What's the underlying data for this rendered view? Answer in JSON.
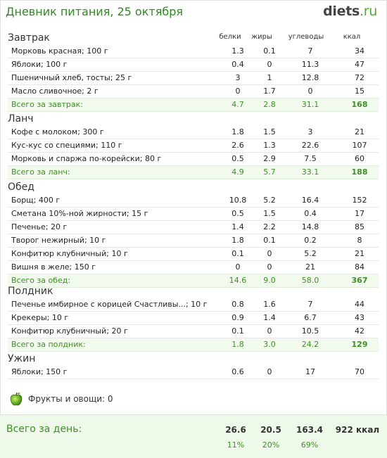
{
  "header": {
    "title": "Дневник питания, 25 октября",
    "logo_main": "diets",
    "logo_ru": ".ru"
  },
  "columns": {
    "protein": "белки",
    "fat": "жиры",
    "carbs": "углеводы",
    "kcal": "ккал"
  },
  "meals": [
    {
      "title": "Завтрак",
      "items": [
        {
          "name": "Морковь красная; 100 г",
          "p": "1.3",
          "f": "0.1",
          "c": "7",
          "k": "34"
        },
        {
          "name": "Яблоки; 100 г",
          "p": "0.4",
          "f": "0",
          "c": "11.3",
          "k": "47"
        },
        {
          "name": "Пшеничный хлеб, тосты; 25 г",
          "p": "3",
          "f": "1",
          "c": "12.8",
          "k": "72"
        },
        {
          "name": "Масло сливочное; 2 г",
          "p": "0",
          "f": "1.7",
          "c": "0",
          "k": "15"
        }
      ],
      "total": {
        "name": "Всего за завтрак:",
        "p": "4.7",
        "f": "2.8",
        "c": "31.1",
        "k": "168"
      }
    },
    {
      "title": "Ланч",
      "items": [
        {
          "name": "Кофе с молоком; 300 г",
          "p": "1.8",
          "f": "1.5",
          "c": "3",
          "k": "21"
        },
        {
          "name": "Кус-кус со специями; 110 г",
          "p": "2.6",
          "f": "1.3",
          "c": "22.6",
          "k": "107"
        },
        {
          "name": "Морковь и спаржа по-корейски; 80 г",
          "p": "0.5",
          "f": "2.9",
          "c": "7.5",
          "k": "60"
        }
      ],
      "total": {
        "name": "Всего за ланч:",
        "p": "4.9",
        "f": "5.7",
        "c": "33.1",
        "k": "188"
      }
    },
    {
      "title": "Обед",
      "items": [
        {
          "name": "Борщ; 400 г",
          "p": "10.8",
          "f": "5.2",
          "c": "16.4",
          "k": "152"
        },
        {
          "name": "Сметана 10%-ной жирности; 15 г",
          "p": "0.5",
          "f": "1.5",
          "c": "0.4",
          "k": "17"
        },
        {
          "name": "Печенье; 20 г",
          "p": "1.4",
          "f": "2.2",
          "c": "14.8",
          "k": "85"
        },
        {
          "name": "Творог нежирный; 10 г",
          "p": "1.8",
          "f": "0.1",
          "c": "0.2",
          "k": "8"
        },
        {
          "name": "Конфитюр клубничный; 10 г",
          "p": "0.1",
          "f": "0",
          "c": "5.2",
          "k": "21"
        },
        {
          "name": "Вишня в желе; 150 г",
          "p": "0",
          "f": "0",
          "c": "21",
          "k": "84"
        }
      ],
      "total": {
        "name": "Всего за обед:",
        "p": "14.6",
        "f": "9.0",
        "c": "58.0",
        "k": "367"
      }
    },
    {
      "title": "Полдник",
      "items": [
        {
          "name": "Печенье имбирное с корицей Счастливы...; 10 г",
          "p": "0.8",
          "f": "1.6",
          "c": "7",
          "k": "44"
        },
        {
          "name": "Крекеры; 10 г",
          "p": "0.9",
          "f": "1.4",
          "c": "6.7",
          "k": "43"
        },
        {
          "name": "Конфитюр клубничный; 20 г",
          "p": "0.1",
          "f": "0",
          "c": "10.5",
          "k": "42"
        }
      ],
      "total": {
        "name": "Всего за полдник:",
        "p": "1.8",
        "f": "3.0",
        "c": "24.2",
        "k": "129"
      }
    },
    {
      "title": "Ужин",
      "items": [
        {
          "name": "Яблоки; 150 г",
          "p": "0.6",
          "f": "0",
          "c": "17",
          "k": "70"
        }
      ],
      "total": null
    }
  ],
  "fruits": {
    "label": "Фрукты и овощи: 0",
    "icon": "apple-icon"
  },
  "day_total": {
    "label": "Всего за день:",
    "p": "26.6",
    "f": "20.5",
    "c": "163.4",
    "k": "922 ккал",
    "p_pct": "11%",
    "f_pct": "20%",
    "c_pct": "69%"
  },
  "colors": {
    "accent_green": "#3e8f26",
    "total_row_bg": "#f1faec",
    "footer_bg": "#eef9e9"
  }
}
